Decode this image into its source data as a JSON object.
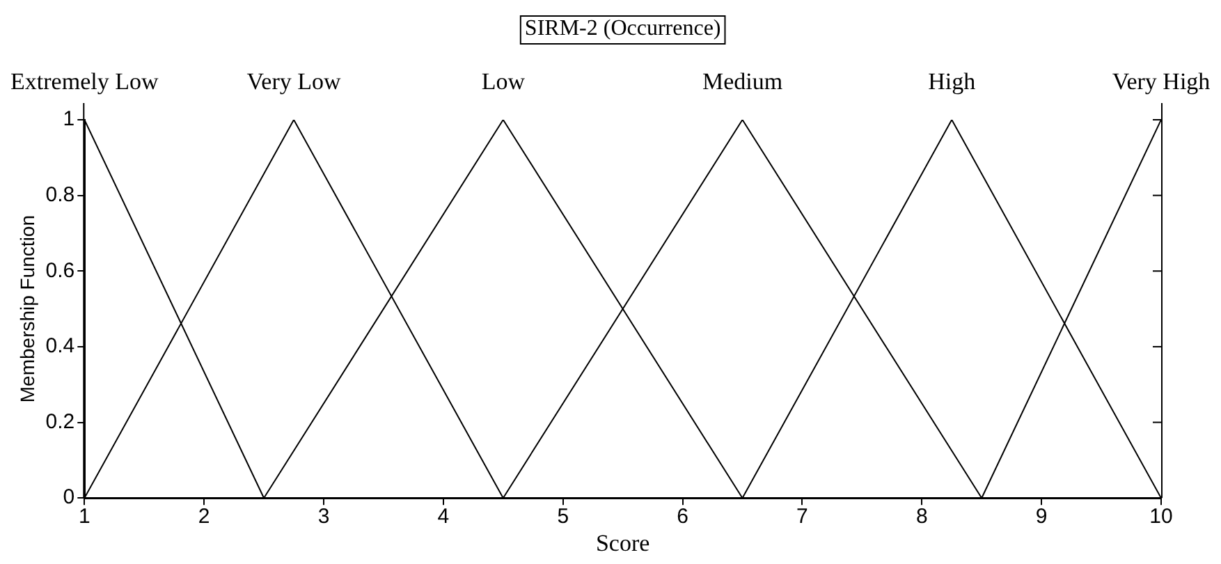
{
  "chart_data": {
    "type": "line",
    "title": "SIRM-2 (Occurrence)",
    "xlabel": "Score",
    "ylabel": "Membership Function",
    "xlim": [
      1,
      10
    ],
    "xticks": [
      1,
      2,
      3,
      4,
      5,
      6,
      7,
      8,
      9,
      10
    ],
    "ylim": [
      0,
      1
    ],
    "yticks": [
      0,
      0.2,
      0.4,
      0.6,
      0.8,
      1
    ],
    "grid": false,
    "legend": false,
    "marker": "none",
    "line_style": "solid",
    "series": [
      {
        "name": "Extremely Low",
        "color": "#000000",
        "x": [
          1,
          2.5
        ],
        "values": [
          1,
          0
        ]
      },
      {
        "name": "Very Low",
        "color": "#000000",
        "x": [
          1,
          2.75,
          4.5
        ],
        "values": [
          0,
          1,
          0
        ]
      },
      {
        "name": "Low",
        "color": "#000000",
        "x": [
          2.5,
          4.5,
          6.5
        ],
        "values": [
          0,
          1,
          0
        ]
      },
      {
        "name": "Medium",
        "color": "#000000",
        "x": [
          4.5,
          6.5,
          8.5
        ],
        "values": [
          0,
          1,
          0
        ]
      },
      {
        "name": "High",
        "color": "#000000",
        "x": [
          6.5,
          8.25,
          10
        ],
        "values": [
          0,
          1,
          0
        ]
      },
      {
        "name": "Very High",
        "color": "#000000",
        "x": [
          8.5,
          10
        ],
        "values": [
          0,
          1
        ]
      }
    ]
  }
}
